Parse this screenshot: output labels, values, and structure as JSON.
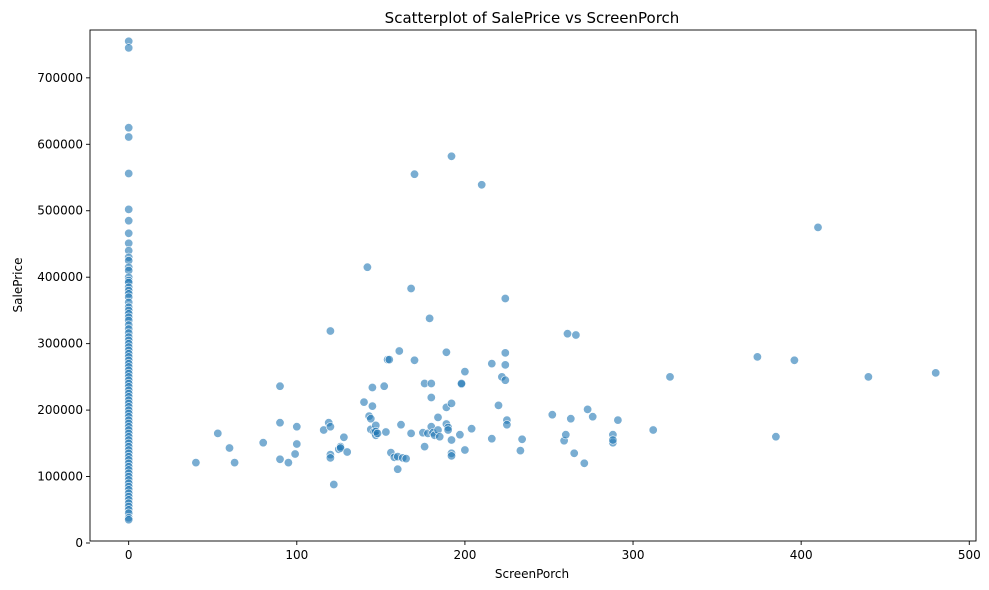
{
  "chart_data": {
    "type": "scatter",
    "title": "Scatterplot of SalePrice vs ScreenPorch",
    "xlabel": "ScreenPorch",
    "ylabel": "SalePrice",
    "xlim": [
      -23,
      504
    ],
    "ylim": [
      3000,
      772000
    ],
    "xticks": [
      0,
      100,
      200,
      300,
      400,
      500
    ],
    "yticks": [
      0,
      100000,
      200000,
      300000,
      400000,
      500000,
      600000,
      700000
    ],
    "ytick_labels": [
      "0",
      "100000",
      "200000",
      "300000",
      "400000",
      "500000",
      "600000",
      "700000"
    ],
    "grid": false,
    "color": "#1f77b4",
    "x": [
      0,
      0,
      0,
      0,
      0,
      0,
      0,
      0,
      0,
      0,
      0,
      0,
      0,
      0,
      0,
      0,
      0,
      0,
      0,
      0,
      0,
      0,
      0,
      0,
      0,
      0,
      0,
      0,
      0,
      0,
      0,
      0,
      0,
      0,
      0,
      0,
      0,
      0,
      0,
      0,
      0,
      0,
      0,
      0,
      0,
      0,
      0,
      0,
      0,
      0,
      0,
      0,
      0,
      0,
      0,
      0,
      0,
      0,
      0,
      0,
      0,
      0,
      0,
      0,
      0,
      0,
      0,
      0,
      0,
      0,
      0,
      0,
      0,
      0,
      0,
      0,
      0,
      0,
      0,
      0,
      0,
      0,
      0,
      0,
      0,
      0,
      40,
      53,
      60,
      63,
      80,
      90,
      90,
      90,
      95,
      99,
      100,
      100,
      116,
      119,
      120,
      120,
      120,
      120,
      122,
      125,
      126,
      126,
      128,
      130,
      140,
      142,
      143,
      144,
      144,
      145,
      145,
      146,
      147,
      147,
      147,
      148,
      152,
      153,
      154,
      155,
      156,
      158,
      160,
      160,
      161,
      162,
      163,
      165,
      168,
      168,
      170,
      170,
      175,
      176,
      176,
      178,
      179,
      180,
      180,
      180,
      181,
      182,
      184,
      184,
      185,
      189,
      189,
      189,
      190,
      190,
      192,
      192,
      192,
      192,
      192,
      197,
      198,
      198,
      200,
      200,
      204,
      210,
      216,
      216,
      220,
      222,
      224,
      224,
      224,
      224,
      225,
      225,
      233,
      234,
      252,
      259,
      260,
      261,
      263,
      265,
      266,
      271,
      273,
      276,
      288,
      288,
      288,
      291,
      312,
      322,
      374,
      385,
      396,
      410,
      440,
      480
    ],
    "y": [
      755000,
      745000,
      625000,
      611000,
      556000,
      502000,
      485000,
      466000,
      451000,
      440000,
      430000,
      425000,
      415000,
      410000,
      400000,
      395000,
      392000,
      385000,
      380000,
      375000,
      370000,
      362000,
      355000,
      350000,
      345000,
      340000,
      335000,
      328000,
      322000,
      316000,
      310000,
      305000,
      300000,
      295000,
      290000,
      285000,
      280000,
      275000,
      270000,
      265000,
      260000,
      255000,
      250000,
      245000,
      240000,
      235000,
      230000,
      225000,
      220000,
      215000,
      210000,
      205000,
      200000,
      195000,
      190000,
      185000,
      180000,
      175000,
      170000,
      165000,
      160000,
      155000,
      150000,
      145000,
      140000,
      135000,
      130000,
      125000,
      120000,
      115000,
      110000,
      105000,
      100000,
      95000,
      90000,
      85000,
      80000,
      75000,
      70000,
      65000,
      60000,
      55000,
      50000,
      45000,
      38000,
      35000,
      121000,
      165000,
      143000,
      121000,
      151000,
      236000,
      181000,
      126000,
      121000,
      134000,
      175000,
      149000,
      170000,
      181000,
      319000,
      175000,
      133000,
      128000,
      88000,
      141000,
      145000,
      143000,
      159000,
      137000,
      212000,
      415000,
      191000,
      171000,
      187000,
      234000,
      206000,
      167000,
      177000,
      162000,
      168000,
      165000,
      236000,
      167000,
      276000,
      276000,
      136000,
      129000,
      130000,
      111000,
      289000,
      178000,
      128000,
      127000,
      383000,
      165000,
      555000,
      275000,
      166000,
      145000,
      240000,
      165000,
      338000,
      219000,
      240000,
      175000,
      166000,
      162000,
      170000,
      189000,
      160000,
      287000,
      179000,
      204000,
      174000,
      170000,
      582000,
      210000,
      155000,
      135000,
      131000,
      163000,
      239000,
      240000,
      140000,
      258000,
      172000,
      539000,
      270000,
      157000,
      207000,
      250000,
      368000,
      286000,
      268000,
      245000,
      185000,
      178000,
      139000,
      156000,
      193000,
      154000,
      163000,
      315000,
      187000,
      135000,
      313000,
      120000,
      201000,
      190000,
      151000,
      163000,
      155000,
      185000,
      170000,
      250000,
      280000,
      160000,
      275000,
      475000,
      250000,
      256000
    ]
  }
}
